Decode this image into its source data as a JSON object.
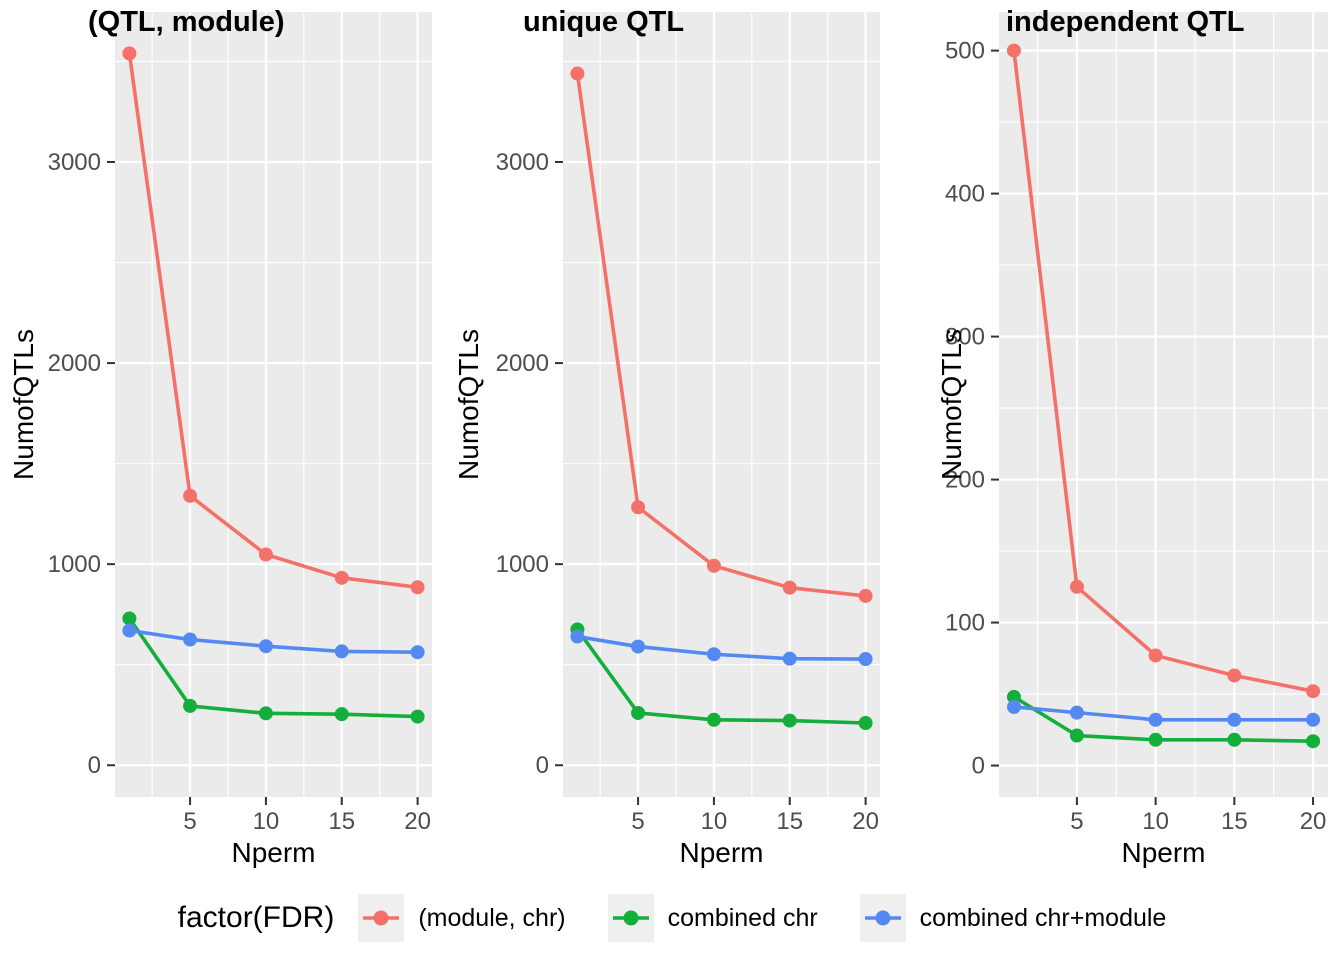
{
  "figure": {
    "xlabel": "Nperm",
    "ylabel": "NumofQTLs"
  },
  "colors": {
    "red": "#F4716A",
    "green": "#14AE3A",
    "blue": "#5589F2",
    "panel_background": "#EBEBEB",
    "gridline": "#FFFFFF",
    "tick_text": "#4D4D4D",
    "legend_key_background": "#EFEFEF"
  },
  "legend": {
    "title": "factor(FDR)",
    "position": "bottom",
    "entries": [
      {
        "label": "(module, chr)",
        "color": "red"
      },
      {
        "label": "combined chr",
        "color": "green"
      },
      {
        "label": "combined chr+module",
        "color": "blue"
      }
    ]
  },
  "chart_data": [
    {
      "type": "line",
      "title": "(QTL, module)",
      "xlabel": "Nperm",
      "ylabel": "NumofQTLs",
      "x": [
        1,
        5,
        10,
        15,
        20
      ],
      "xticks": [
        5,
        10,
        15,
        20
      ],
      "xlim": [
        0.05,
        20.95
      ],
      "yticks": [
        0,
        1000,
        2000,
        3000
      ],
      "ylim": [
        -158,
        3746
      ],
      "grid": "major-minor",
      "series": [
        {
          "name": "(module, chr)",
          "color": "red",
          "values": [
            3540,
            1340,
            1048,
            932,
            885
          ]
        },
        {
          "name": "combined chr",
          "color": "green",
          "values": [
            730,
            295,
            258,
            254,
            242
          ]
        },
        {
          "name": "combined chr+module",
          "color": "blue",
          "values": [
            670,
            625,
            592,
            566,
            562
          ]
        }
      ]
    },
    {
      "type": "line",
      "title": "unique QTL",
      "xlabel": "Nperm",
      "ylabel": "NumofQTLs",
      "x": [
        1,
        5,
        10,
        15,
        20
      ],
      "xticks": [
        5,
        10,
        15,
        20
      ],
      "xlim": [
        0.05,
        20.95
      ],
      "yticks": [
        0,
        1000,
        2000,
        3000
      ],
      "ylim": [
        -158,
        3746
      ],
      "grid": "major-minor",
      "series": [
        {
          "name": "(module, chr)",
          "color": "red",
          "values": [
            3440,
            1283,
            992,
            883,
            842
          ]
        },
        {
          "name": "combined chr",
          "color": "green",
          "values": [
            675,
            260,
            226,
            222,
            210
          ]
        },
        {
          "name": "combined chr+module",
          "color": "blue",
          "values": [
            640,
            590,
            552,
            530,
            528
          ]
        }
      ]
    },
    {
      "type": "line",
      "title": "independent QTL",
      "xlabel": "Nperm",
      "ylabel": "NumofQTLs",
      "x": [
        1,
        5,
        10,
        15,
        20
      ],
      "xticks": [
        5,
        10,
        15,
        20
      ],
      "xlim": [
        0.05,
        20.95
      ],
      "yticks": [
        0,
        100,
        200,
        300,
        400,
        500
      ],
      "ylim": [
        -22,
        527
      ],
      "grid": "major-minor",
      "series": [
        {
          "name": "(module, chr)",
          "color": "red",
          "values": [
            500,
            125,
            77,
            63,
            52
          ]
        },
        {
          "name": "combined chr",
          "color": "green",
          "values": [
            48,
            21,
            18,
            18,
            17
          ]
        },
        {
          "name": "combined chr+module",
          "color": "blue",
          "values": [
            41,
            37,
            32,
            32,
            32
          ]
        }
      ]
    }
  ]
}
